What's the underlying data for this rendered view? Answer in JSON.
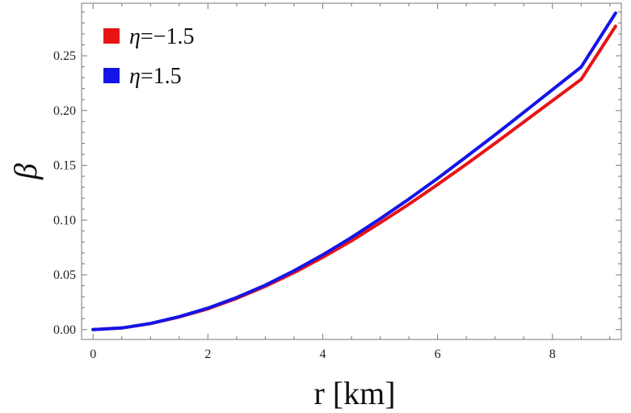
{
  "chart_data": {
    "type": "line",
    "xlabel": "r [km]",
    "ylabel": "β",
    "xlim": [
      -0.2,
      9.2
    ],
    "ylim": [
      -0.009,
      0.298
    ],
    "x_ticks": [
      0,
      2,
      4,
      6,
      8
    ],
    "x_tick_labels": [
      "0",
      "2",
      "4",
      "6",
      "8"
    ],
    "y_ticks": [
      0.0,
      0.05,
      0.1,
      0.15,
      0.2,
      0.25
    ],
    "y_tick_labels": [
      "0.00",
      "0.05",
      "0.10",
      "0.15",
      "0.20",
      "0.25"
    ],
    "grid": false,
    "legend_position": "top-left",
    "series": [
      {
        "name": "η=−1.5",
        "legend_symbol": "η",
        "legend_value": "=−1.5",
        "color": "#e81414",
        "x": [
          0,
          0.5,
          1,
          1.5,
          2,
          2.5,
          3,
          3.5,
          4,
          4.5,
          5,
          5.5,
          6,
          6.5,
          7,
          7.5,
          8,
          8.5,
          9.1
        ],
        "y": [
          0.0,
          0.0015,
          0.0055,
          0.0115,
          0.019,
          0.0285,
          0.0395,
          0.052,
          0.066,
          0.081,
          0.0975,
          0.1145,
          0.1325,
          0.151,
          0.17,
          0.1895,
          0.209,
          0.2285,
          0.277
        ]
      },
      {
        "name": "η=1.5",
        "legend_symbol": "η",
        "legend_value": "=1.5",
        "color": "#1414e8",
        "x": [
          0,
          0.5,
          1,
          1.5,
          2,
          2.5,
          3,
          3.5,
          4,
          4.5,
          5,
          5.5,
          6,
          6.5,
          7,
          7.5,
          8,
          8.5,
          9.1
        ],
        "y": [
          0.0,
          0.0015,
          0.0056,
          0.0118,
          0.0196,
          0.0293,
          0.0406,
          0.0537,
          0.0683,
          0.0841,
          0.1012,
          0.1192,
          0.1381,
          0.1578,
          0.1778,
          0.1983,
          0.219,
          0.2398,
          0.289
        ]
      }
    ]
  }
}
